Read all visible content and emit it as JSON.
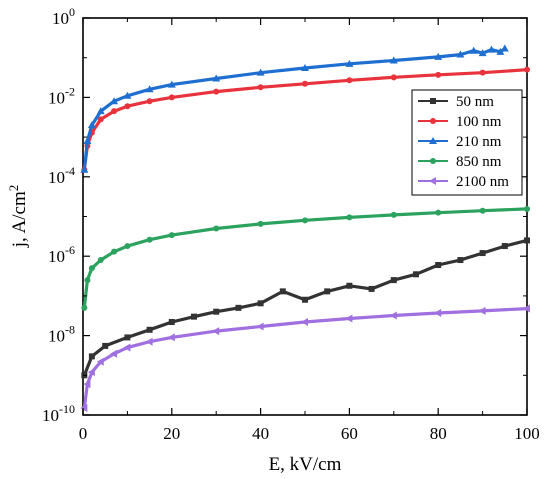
{
  "chart_data": {
    "type": "line",
    "xlabel": "E, kV/cm",
    "ylabel_base": "j, A/cm",
    "ylabel_exp": "2",
    "xlim": [
      0,
      100
    ],
    "ylim": [
      1e-10,
      1
    ],
    "yscale": "log",
    "legend_position": "right",
    "x_ticks": [
      "0",
      "20",
      "40",
      "60",
      "80",
      "100"
    ],
    "y_ticks": [
      {
        "base": "10",
        "exp": "-10"
      },
      {
        "base": "10",
        "exp": "-8"
      },
      {
        "base": "10",
        "exp": "-6"
      },
      {
        "base": "10",
        "exp": "-4"
      },
      {
        "base": "10",
        "exp": "-2"
      },
      {
        "base": "10",
        "exp": "0"
      }
    ],
    "series": [
      {
        "name": "50 nm",
        "color": "#333333",
        "marker": "square",
        "x": [
          0.3,
          2,
          5,
          10,
          15,
          20,
          25,
          30,
          35,
          40,
          45,
          50,
          55,
          60,
          65,
          70,
          75,
          80,
          85,
          90,
          95,
          100
        ],
        "y": [
          1e-09,
          3e-09,
          5.5e-09,
          9e-09,
          1.4e-08,
          2.2e-08,
          3e-08,
          4e-08,
          5e-08,
          6.5e-08,
          1.3e-07,
          8e-08,
          1.3e-07,
          1.8e-07,
          1.5e-07,
          2.5e-07,
          3.5e-07,
          6e-07,
          8e-07,
          1.2e-06,
          1.8e-06,
          2.5e-06
        ]
      },
      {
        "name": "100 nm",
        "color": "#e8333c",
        "marker": "circle",
        "x": [
          0.3,
          1,
          2,
          4,
          7,
          10,
          15,
          20,
          30,
          40,
          50,
          60,
          70,
          80,
          90,
          100
        ],
        "y": [
          0.00015,
          0.0006,
          0.0013,
          0.0028,
          0.0045,
          0.006,
          0.008,
          0.01,
          0.014,
          0.018,
          0.022,
          0.027,
          0.032,
          0.037,
          0.042,
          0.05
        ]
      },
      {
        "name": "210 nm",
        "color": "#1f6fd1",
        "marker": "triangle",
        "x": [
          0.3,
          1,
          2,
          4,
          7,
          10,
          15,
          20,
          30,
          40,
          50,
          60,
          70,
          80,
          85,
          88,
          90,
          92,
          94,
          95
        ],
        "y": [
          0.00015,
          0.0008,
          0.002,
          0.0045,
          0.008,
          0.011,
          0.016,
          0.021,
          0.03,
          0.042,
          0.055,
          0.07,
          0.085,
          0.105,
          0.12,
          0.15,
          0.13,
          0.16,
          0.14,
          0.17
        ]
      },
      {
        "name": "850 nm",
        "color": "#2ca25f",
        "marker": "star",
        "x": [
          0.3,
          1,
          2,
          4,
          7,
          10,
          15,
          20,
          30,
          40,
          50,
          60,
          70,
          80,
          90,
          100
        ],
        "y": [
          5e-08,
          2.5e-07,
          5e-07,
          8e-07,
          1.3e-06,
          1.8e-06,
          2.6e-06,
          3.4e-06,
          5e-06,
          6.5e-06,
          8e-06,
          9.5e-06,
          1.1e-05,
          1.25e-05,
          1.4e-05,
          1.55e-05
        ]
      },
      {
        "name": "2100 nm",
        "color": "#a070e0",
        "marker": "triangle-left",
        "x": [
          0.3,
          1,
          2,
          4,
          7,
          10,
          15,
          20,
          30,
          40,
          50,
          60,
          70,
          80,
          90,
          100
        ],
        "y": [
          1.5e-10,
          6e-10,
          1.2e-09,
          2.2e-09,
          3.5e-09,
          5e-09,
          7e-09,
          9e-09,
          1.3e-08,
          1.7e-08,
          2.2e-08,
          2.7e-08,
          3.2e-08,
          3.7e-08,
          4.2e-08,
          4.8e-08
        ]
      }
    ]
  }
}
